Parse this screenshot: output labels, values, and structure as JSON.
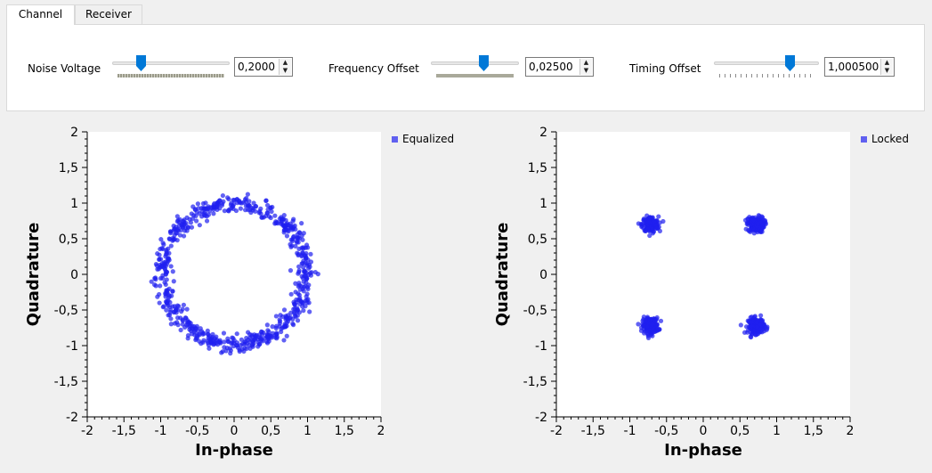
{
  "tabs": [
    {
      "label": "Channel",
      "active": true
    },
    {
      "label": "Receiver",
      "active": false
    }
  ],
  "controls": {
    "noise_voltage": {
      "label": "Noise Voltage",
      "value": "0,2000",
      "slider_fraction": 0.22
    },
    "frequency_offset": {
      "label": "Frequency Offset",
      "value": "0,02500",
      "slider_fraction": 0.61
    },
    "timing_offset": {
      "label": "Timing Offset",
      "value": "1,000500",
      "slider_fraction": 0.75
    }
  },
  "colors": {
    "accent": "#0078d7",
    "point": "#2020f0",
    "legend": "#6060f0"
  },
  "chart_data": [
    {
      "type": "scatter",
      "legend": "Equalized",
      "xlabel": "In-phase",
      "ylabel": "Quadrature",
      "xlim": [
        -2,
        2
      ],
      "ylim": [
        -2,
        2
      ],
      "xticks": [
        "-2",
        "-1,5",
        "-1",
        "-0,5",
        "0",
        "0,5",
        "1",
        "1,5",
        "2"
      ],
      "yticks": [
        "2",
        "1,5",
        "1",
        "0,5",
        "0",
        "-0,5",
        "-1",
        "-1,5",
        "-2"
      ],
      "pattern": "ring",
      "radius": 0.98,
      "spread": 0.06,
      "n_points": 700,
      "legend_position": "top-right-outside"
    },
    {
      "type": "scatter",
      "legend": "Locked",
      "xlabel": "In-phase",
      "ylabel": "Quadrature",
      "xlim": [
        -2,
        2
      ],
      "ylim": [
        -2,
        2
      ],
      "xticks": [
        "-2",
        "-1,5",
        "-1",
        "-0,5",
        "0",
        "0,5",
        "1",
        "1,5",
        "2"
      ],
      "yticks": [
        "2",
        "1,5",
        "1",
        "0,5",
        "0",
        "-0,5",
        "-1",
        "-1,5",
        "-2"
      ],
      "pattern": "clusters",
      "centers": [
        [
          -0.72,
          0.7
        ],
        [
          0.72,
          0.7
        ],
        [
          -0.72,
          -0.72
        ],
        [
          0.72,
          -0.72
        ]
      ],
      "spread": 0.055,
      "n_points": 700,
      "legend_position": "top-right-outside"
    }
  ]
}
